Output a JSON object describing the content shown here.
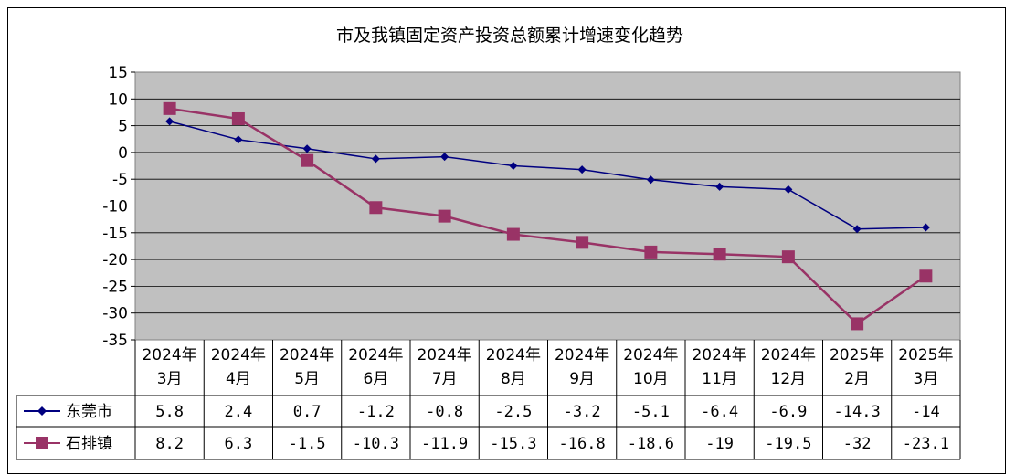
{
  "chart_data": {
    "type": "line",
    "title": "市及我镇固定资产投资总额累计增速变化趋势",
    "categories": [
      [
        "2024年",
        "3月"
      ],
      [
        "2024年",
        "4月"
      ],
      [
        "2024年",
        "5月"
      ],
      [
        "2024年",
        "6月"
      ],
      [
        "2024年",
        "7月"
      ],
      [
        "2024年",
        "8月"
      ],
      [
        "2024年",
        "9月"
      ],
      [
        "2024年",
        "10月"
      ],
      [
        "2024年",
        "11月"
      ],
      [
        "2024年",
        "12月"
      ],
      [
        "2025年",
        "2月"
      ],
      [
        "2025年",
        "3月"
      ]
    ],
    "series": [
      {
        "name": "东莞市",
        "values": [
          5.8,
          2.4,
          0.7,
          -1.2,
          -0.8,
          -2.5,
          -3.2,
          -5.1,
          -6.4,
          -6.9,
          -14.3,
          -14
        ],
        "labels": [
          "5.8",
          "2.4",
          "0.7",
          "-1.2",
          "-0.8",
          "-2.5",
          "-3.2",
          "-5.1",
          "-6.4",
          "-6.9",
          "-14.3",
          "-14"
        ],
        "color": "#000080",
        "marker": "diamond"
      },
      {
        "name": "石排镇",
        "values": [
          8.2,
          6.3,
          -1.5,
          -10.3,
          -11.9,
          -15.3,
          -16.8,
          -18.6,
          -19,
          -19.5,
          -32,
          -23.1
        ],
        "labels": [
          "8.2",
          "6.3",
          "-1.5",
          "-10.3",
          "-11.9",
          "-15.3",
          "-16.8",
          "-18.6",
          "-19",
          "-19.5",
          "-32",
          "-23.1"
        ],
        "color": "#993366",
        "marker": "square"
      }
    ],
    "ylim": [
      -35,
      15
    ],
    "yticks": [
      "15",
      "10",
      "5",
      "0",
      "-5",
      "-10",
      "-15",
      "-20",
      "-25",
      "-30",
      "-35"
    ],
    "grid": true,
    "legend": "data-table",
    "colors": {
      "plot_bg": "#c0c0c0",
      "series1": "#000080",
      "series2": "#993366"
    }
  }
}
